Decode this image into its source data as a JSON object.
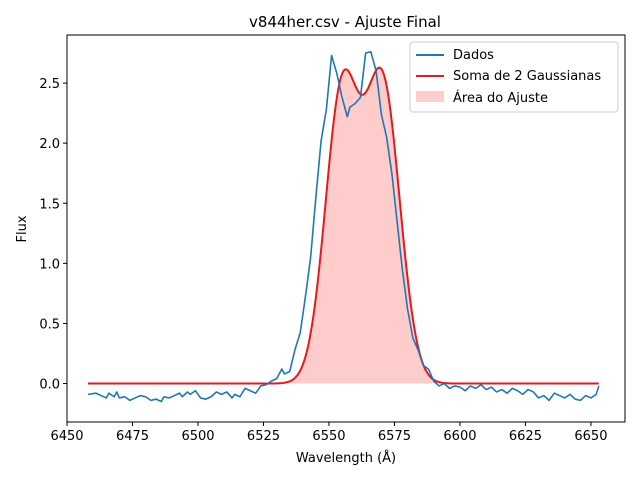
{
  "chart_data": {
    "type": "line",
    "title": "v844her.csv - Ajuste Final",
    "xlabel": "Wavelength (Å)",
    "ylabel": "Flux",
    "xlim": [
      6450,
      6663
    ],
    "ylim": [
      -0.32,
      2.9
    ],
    "xticks": [
      6450,
      6475,
      6500,
      6525,
      6550,
      6575,
      6600,
      6625,
      6650
    ],
    "yticks": [
      0.0,
      0.5,
      1.0,
      1.5,
      2.0,
      2.5
    ],
    "xtick_labels": [
      "6450",
      "6475",
      "6500",
      "6525",
      "6550",
      "6575",
      "6600",
      "6625",
      "6650"
    ],
    "ytick_labels": [
      "0.0",
      "0.5",
      "1.0",
      "1.5",
      "2.0",
      "2.5"
    ],
    "grid": false,
    "legend_position": "top-right",
    "legend": [
      "Dados",
      "Soma de 2 Gaussianas",
      "Área do Ajuste"
    ],
    "colors": {
      "data": "#1f77b4",
      "fit": "#e41a1c",
      "fill": "#ffcccc"
    },
    "gaussians": [
      {
        "amplitude": 2.42,
        "center": 6555.0,
        "sigma": 6.4
      },
      {
        "amplitude": 2.47,
        "center": 6570.5,
        "sigma": 6.6
      }
    ],
    "fit_range": [
      6458,
      6653
    ],
    "series": [
      {
        "name": "Dados",
        "x": [
          6458,
          6461,
          6463,
          6465,
          6466,
          6468,
          6469,
          6470,
          6472,
          6474,
          6476,
          6478,
          6480,
          6482,
          6484,
          6486,
          6487,
          6489,
          6491,
          6493,
          6494,
          6496,
          6497,
          6499,
          6501,
          6503,
          6505,
          6507,
          6509,
          6511,
          6513,
          6514,
          6516,
          6518,
          6520,
          6522,
          6524,
          6526,
          6528,
          6530,
          6532,
          6533,
          6535,
          6537,
          6539,
          6541,
          6543,
          6545,
          6547,
          6549,
          6551,
          6553,
          6555,
          6557,
          6558,
          6560,
          6562,
          6564,
          6566,
          6568,
          6570,
          6572,
          6574,
          6576,
          6578,
          6580,
          6582,
          6584,
          6586,
          6588,
          6590,
          6592,
          6594,
          6596,
          6598,
          6600,
          6602,
          6604,
          6606,
          6608,
          6610,
          6612,
          6614,
          6616,
          6618,
          6620,
          6622,
          6624,
          6626,
          6628,
          6630,
          6632,
          6634,
          6636,
          6638,
          6640,
          6642,
          6644,
          6646,
          6648,
          6650,
          6652,
          6653
        ],
        "y": [
          -0.09,
          -0.08,
          -0.1,
          -0.12,
          -0.08,
          -0.11,
          -0.07,
          -0.12,
          -0.11,
          -0.14,
          -0.12,
          -0.1,
          -0.11,
          -0.14,
          -0.13,
          -0.15,
          -0.11,
          -0.12,
          -0.1,
          -0.08,
          -0.11,
          -0.07,
          -0.09,
          -0.06,
          -0.12,
          -0.13,
          -0.11,
          -0.07,
          -0.09,
          -0.07,
          -0.12,
          -0.09,
          -0.11,
          -0.04,
          -0.06,
          -0.08,
          -0.02,
          -0.01,
          0.02,
          0.04,
          0.12,
          0.08,
          0.1,
          0.28,
          0.42,
          0.72,
          1.05,
          1.55,
          2.02,
          2.28,
          2.73,
          2.58,
          2.38,
          2.22,
          2.3,
          2.33,
          2.38,
          2.75,
          2.76,
          2.6,
          2.24,
          2.05,
          1.75,
          1.35,
          0.95,
          0.62,
          0.38,
          0.28,
          0.15,
          0.12,
          0.02,
          -0.02,
          0.0,
          -0.04,
          -0.02,
          -0.03,
          -0.06,
          -0.02,
          -0.04,
          -0.01,
          -0.05,
          -0.03,
          -0.07,
          -0.05,
          -0.08,
          -0.04,
          -0.06,
          -0.09,
          -0.05,
          -0.07,
          -0.12,
          -0.1,
          -0.14,
          -0.08,
          -0.1,
          -0.12,
          -0.09,
          -0.13,
          -0.14,
          -0.1,
          -0.12,
          -0.09,
          -0.02
        ]
      },
      {
        "name": "Soma de 2 Gaussianas"
      }
    ]
  }
}
